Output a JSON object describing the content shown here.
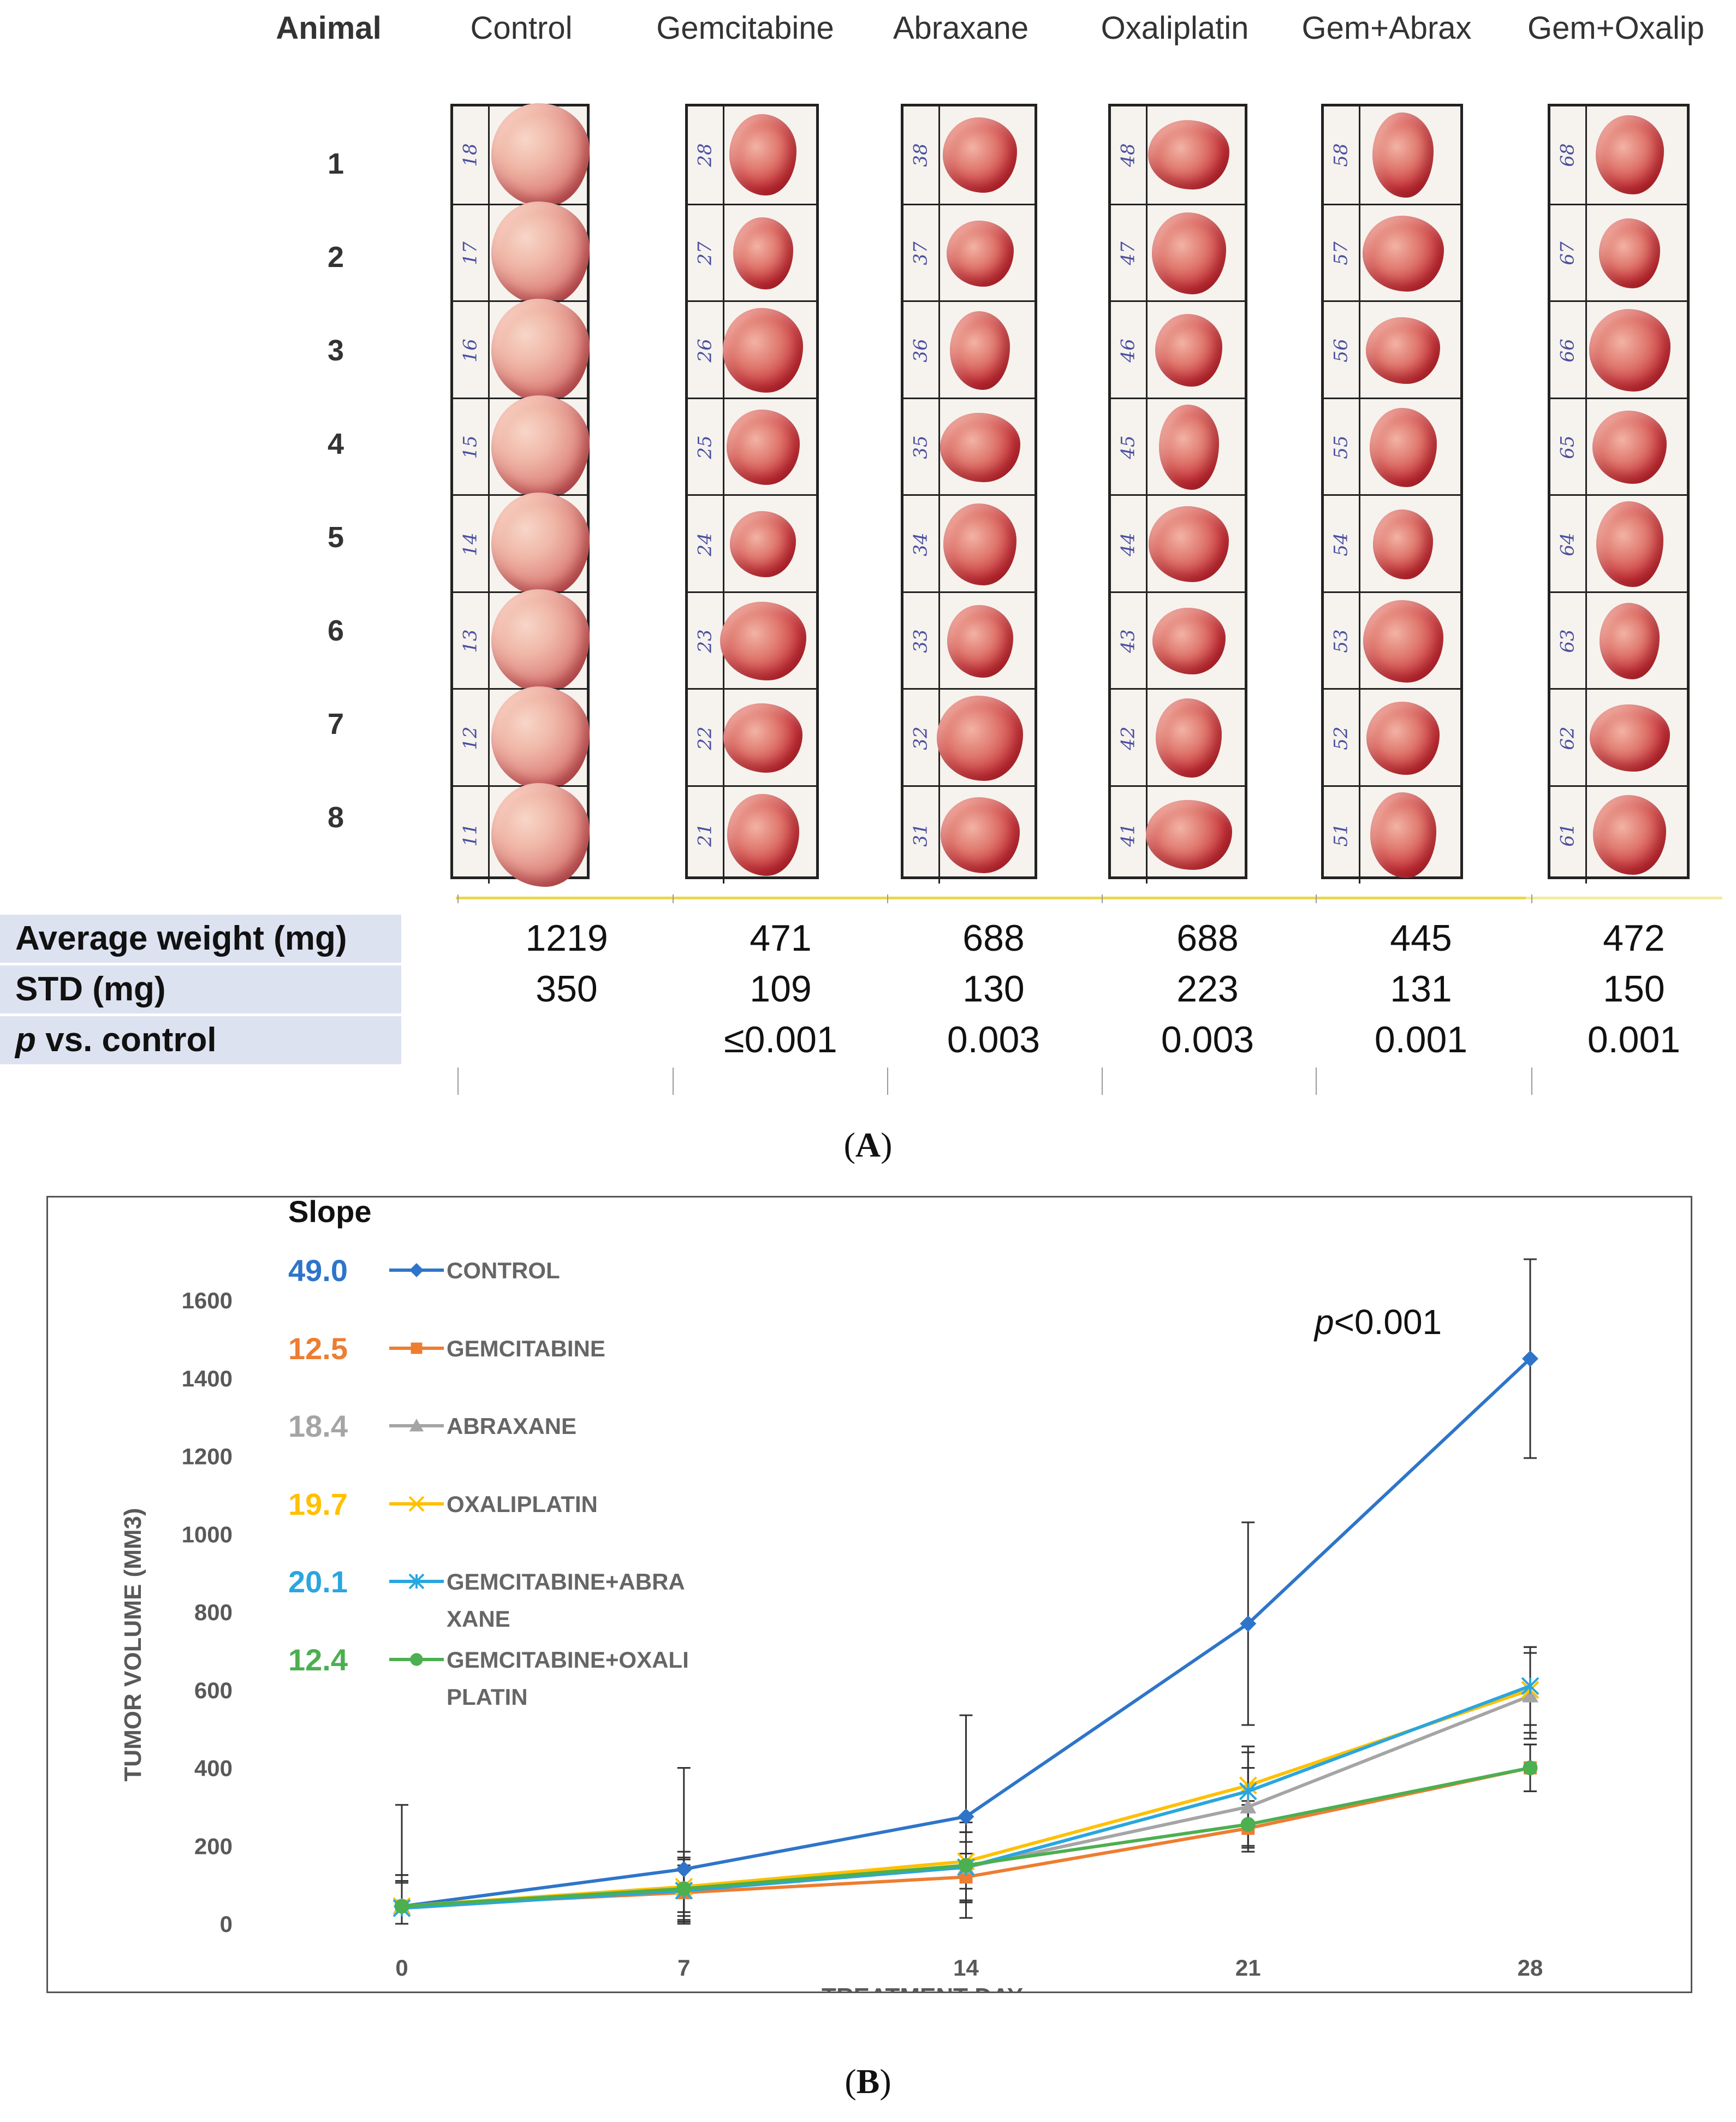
{
  "panel_a": {
    "animal_header": "Animal",
    "groups": [
      "Control",
      "Gemcitabine",
      "Abraxane",
      "Oxaliplatin",
      "Gem+Abrax",
      "Gem+Oxalip"
    ],
    "animals": [
      "1",
      "2",
      "3",
      "4",
      "5",
      "6",
      "7",
      "8"
    ],
    "specimen_ids": [
      [
        "18",
        "17",
        "16",
        "15",
        "14",
        "13",
        "12",
        "11"
      ],
      [
        "28",
        "27",
        "26",
        "25",
        "24",
        "23",
        "22",
        "21"
      ],
      [
        "38",
        "37",
        "36",
        "35",
        "34",
        "33",
        "32",
        "31"
      ],
      [
        "48",
        "47",
        "46",
        "45",
        "44",
        "43",
        "42",
        "41"
      ],
      [
        "58",
        "57",
        "56",
        "55",
        "54",
        "53",
        "52",
        "51"
      ],
      [
        "68",
        "67",
        "66",
        "65",
        "64",
        "63",
        "62",
        "61"
      ]
    ],
    "stats": {
      "avg_label": "Average weight (mg)",
      "std_label": "STD (mg)",
      "p_label_italic": "p",
      "p_label_rest": " vs. control",
      "avg": [
        "1219",
        "471",
        "688",
        "688",
        "445",
        "472"
      ],
      "std": [
        "350",
        "109",
        "130",
        "223",
        "131",
        "150"
      ],
      "p": [
        "",
        "≤0.001",
        "0.003",
        "0.003",
        "0.001",
        "0.001"
      ]
    },
    "label": "(A)"
  },
  "panel_b": {
    "label": "(B)",
    "slope_header": "Slope",
    "annotation_italic": "p",
    "annotation_rest": "<0.001"
  },
  "chart_data": {
    "type": "line",
    "xlabel": "TREATMENT DAY",
    "ylabel": "TUMOR VOLUME (MM3)",
    "x": [
      0,
      7,
      14,
      21,
      28
    ],
    "xlim": [
      0,
      28
    ],
    "ylim": [
      0,
      1600
    ],
    "yticks": [
      0,
      200,
      400,
      600,
      800,
      1000,
      1200,
      1400,
      1600
    ],
    "legend_position": "top-left",
    "series": [
      {
        "name": "CONTROL",
        "slope": "49.0",
        "color": "#2e75c9",
        "marker": "diamond",
        "values": [
          45,
          140,
          275,
          770,
          1450
        ],
        "error": [
          260,
          260,
          260,
          260,
          255
        ]
      },
      {
        "name": "GEMCITABINE",
        "slope": "12.5",
        "color": "#ed7d31",
        "marker": "square",
        "values": [
          45,
          80,
          120,
          245,
          400
        ],
        "error": [
          60,
          60,
          60,
          60,
          60
        ]
      },
      {
        "name": "ABRAXANE",
        "slope": "18.4",
        "color": "#a5a5a5",
        "marker": "triangle",
        "values": [
          45,
          90,
          145,
          300,
          585
        ],
        "error": [
          80,
          80,
          90,
          100,
          110
        ]
      },
      {
        "name": "OXALIPLATIN",
        "slope": "19.7",
        "color": "#ffc000",
        "marker": "x",
        "values": [
          45,
          95,
          160,
          355,
          600
        ],
        "error": [
          80,
          90,
          100,
          100,
          110
        ]
      },
      {
        "name": "GEMCITABINE+ABRA\nXANE",
        "slope": "20.1",
        "color": "#2aa6de",
        "marker": "asterisk",
        "values": [
          40,
          85,
          145,
          340,
          610
        ],
        "error": [
          70,
          80,
          90,
          100,
          100
        ]
      },
      {
        "name": "GEMCITABINE+OXALI\nPLATIN",
        "slope": "12.4",
        "color": "#4caf50",
        "marker": "circle",
        "values": [
          45,
          90,
          150,
          255,
          400
        ],
        "error": [
          60,
          60,
          60,
          60,
          60
        ]
      }
    ]
  }
}
